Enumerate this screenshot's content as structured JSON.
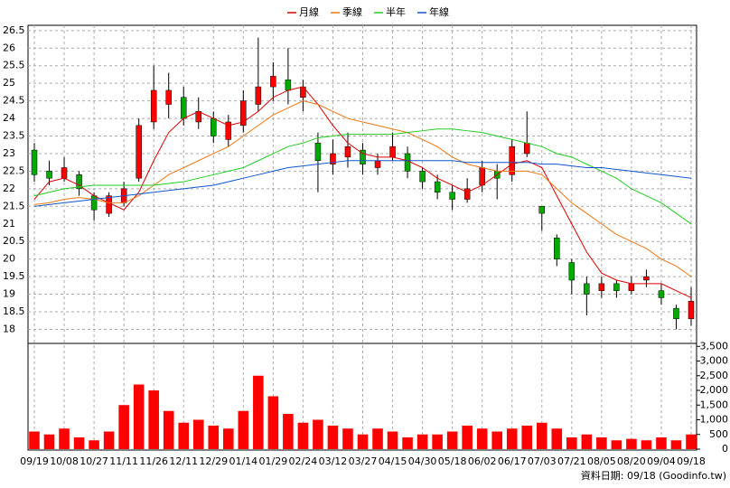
{
  "chart_data": {
    "type": "candlestick",
    "categories": [
      "09/19",
      null,
      "10/08",
      null,
      "10/27",
      null,
      "11/11",
      null,
      "11/26",
      null,
      "12/11",
      null,
      "12/29",
      null,
      "01/14",
      null,
      "01/29",
      null,
      "02/24",
      null,
      "03/12",
      null,
      "03/27",
      null,
      "04/15",
      null,
      "04/30",
      null,
      "05/18",
      null,
      "06/02",
      null,
      "06/17",
      null,
      "07/03",
      null,
      "07/21",
      null,
      "08/05",
      null,
      "08/20",
      null,
      "09/04",
      null,
      "09/18"
    ],
    "ohlc": [
      [
        23.1,
        23.3,
        22.2,
        22.4
      ],
      [
        22.5,
        22.8,
        22.1,
        22.3
      ],
      [
        22.3,
        22.9,
        22.2,
        22.6
      ],
      [
        22.4,
        22.5,
        21.8,
        22.0
      ],
      [
        21.8,
        21.9,
        21.1,
        21.4
      ],
      [
        21.3,
        21.9,
        21.2,
        21.8
      ],
      [
        21.6,
        22.2,
        21.5,
        22.0
      ],
      [
        22.3,
        24.0,
        22.2,
        23.8
      ],
      [
        23.9,
        25.5,
        23.7,
        24.8
      ],
      [
        24.4,
        25.3,
        24.0,
        24.8
      ],
      [
        24.6,
        24.9,
        23.8,
        24.0
      ],
      [
        23.9,
        24.6,
        23.7,
        24.2
      ],
      [
        24.0,
        24.2,
        23.3,
        23.5
      ],
      [
        23.4,
        24.1,
        23.2,
        23.9
      ],
      [
        23.8,
        24.8,
        23.6,
        24.5
      ],
      [
        24.4,
        26.3,
        24.2,
        24.9
      ],
      [
        24.9,
        25.6,
        24.5,
        25.2
      ],
      [
        25.1,
        26.0,
        24.4,
        24.8
      ],
      [
        24.6,
        25.1,
        24.2,
        24.9
      ],
      [
        23.3,
        23.6,
        21.9,
        22.8
      ],
      [
        22.7,
        23.4,
        22.4,
        23.0
      ],
      [
        22.9,
        23.6,
        22.6,
        23.2
      ],
      [
        23.1,
        23.3,
        22.4,
        22.7
      ],
      [
        22.6,
        23.0,
        22.4,
        22.8
      ],
      [
        22.9,
        23.6,
        22.8,
        23.2
      ],
      [
        23.0,
        23.2,
        22.3,
        22.5
      ],
      [
        22.5,
        22.6,
        22.0,
        22.2
      ],
      [
        22.2,
        22.4,
        21.7,
        21.9
      ],
      [
        21.9,
        22.1,
        21.4,
        21.7
      ],
      [
        21.7,
        22.3,
        21.6,
        22.0
      ],
      [
        22.1,
        22.8,
        21.9,
        22.6
      ],
      [
        22.5,
        22.7,
        21.7,
        22.3
      ],
      [
        22.4,
        23.4,
        22.2,
        23.2
      ],
      [
        23.0,
        24.2,
        22.9,
        23.3
      ],
      [
        21.5,
        21.5,
        20.8,
        21.3
      ],
      [
        20.6,
        20.7,
        19.8,
        20.0
      ],
      [
        19.9,
        20.0,
        19.0,
        19.4
      ],
      [
        19.3,
        19.5,
        18.4,
        19.0
      ],
      [
        19.1,
        19.5,
        18.9,
        19.3
      ],
      [
        19.3,
        19.4,
        18.9,
        19.1
      ],
      [
        19.1,
        19.5,
        19.0,
        19.3
      ],
      [
        19.4,
        19.7,
        19.2,
        19.5
      ],
      [
        19.1,
        19.3,
        18.7,
        18.9
      ],
      [
        18.6,
        18.7,
        18.0,
        18.3
      ],
      [
        18.3,
        19.2,
        18.1,
        18.8
      ]
    ],
    "up_color": "#ff0000",
    "down_color": "#00aa00",
    "series": [
      {
        "name": "月線",
        "color": "#dd0000",
        "values": [
          21.7,
          22.2,
          22.3,
          22.1,
          21.8,
          21.6,
          21.4,
          21.9,
          22.8,
          23.6,
          24.0,
          24.2,
          24.0,
          23.8,
          23.9,
          24.2,
          24.6,
          24.8,
          24.9,
          24.4,
          23.8,
          23.3,
          23.0,
          22.9,
          22.9,
          22.8,
          22.6,
          22.3,
          22.1,
          21.9,
          22.1,
          22.4,
          22.7,
          22.8,
          22.6,
          21.8,
          21.0,
          20.2,
          19.6,
          19.4,
          19.3,
          19.3,
          19.3,
          19.1,
          18.9
        ]
      },
      {
        "name": "季線",
        "color": "#ee7711",
        "values": [
          21.55,
          21.6,
          21.7,
          21.75,
          21.7,
          21.6,
          21.6,
          21.8,
          22.1,
          22.4,
          22.6,
          22.8,
          23.0,
          23.2,
          23.5,
          23.8,
          24.1,
          24.3,
          24.5,
          24.4,
          24.2,
          24.0,
          23.9,
          23.8,
          23.7,
          23.6,
          23.4,
          23.2,
          22.9,
          22.7,
          22.6,
          22.5,
          22.5,
          22.5,
          22.4,
          22.0,
          21.6,
          21.3,
          21.0,
          20.7,
          20.5,
          20.3,
          20.0,
          19.8,
          19.5
        ]
      },
      {
        "name": "半年",
        "color": "#22cc22",
        "values": [
          21.8,
          21.9,
          22.0,
          22.05,
          22.1,
          22.1,
          22.1,
          22.1,
          22.1,
          22.15,
          22.2,
          22.3,
          22.4,
          22.5,
          22.6,
          22.8,
          23.0,
          23.2,
          23.3,
          23.45,
          23.5,
          23.55,
          23.55,
          23.55,
          23.55,
          23.6,
          23.65,
          23.7,
          23.7,
          23.65,
          23.6,
          23.5,
          23.4,
          23.3,
          23.2,
          23.0,
          22.9,
          22.7,
          22.5,
          22.3,
          22.0,
          21.8,
          21.6,
          21.3,
          21.0
        ]
      },
      {
        "name": "年線",
        "color": "#1155cc",
        "values": [
          21.5,
          21.55,
          21.6,
          21.65,
          21.7,
          21.75,
          21.8,
          21.85,
          21.9,
          21.95,
          22.0,
          22.05,
          22.1,
          22.2,
          22.3,
          22.4,
          22.5,
          22.6,
          22.65,
          22.7,
          22.75,
          22.8,
          22.8,
          22.8,
          22.8,
          22.8,
          22.8,
          22.8,
          22.8,
          22.75,
          22.75,
          22.75,
          22.75,
          22.75,
          22.7,
          22.7,
          22.65,
          22.6,
          22.6,
          22.55,
          22.5,
          22.45,
          22.4,
          22.35,
          22.3
        ]
      }
    ],
    "ylim": [
      17.6,
      26.65
    ],
    "yticks": [
      18,
      18.5,
      19,
      19.5,
      20,
      20.5,
      21,
      21.5,
      22,
      22.5,
      23,
      23.5,
      24,
      24.5,
      25,
      25.5,
      26,
      26.5
    ],
    "volume": {
      "color": "#ff0000",
      "values": [
        600,
        500,
        700,
        400,
        300,
        600,
        1500,
        2200,
        2000,
        1300,
        900,
        1000,
        800,
        700,
        1300,
        2500,
        1800,
        1200,
        900,
        1000,
        800,
        700,
        500,
        700,
        600,
        400,
        500,
        500,
        600,
        800,
        700,
        600,
        700,
        800,
        900,
        700,
        400,
        500,
        400,
        300,
        350,
        300,
        400,
        300,
        500
      ],
      "ylim": [
        0,
        3600
      ],
      "yticks": [
        0,
        500,
        {
          "value": 1000,
          "label": "1,000"
        },
        {
          "value": 1500,
          "label": "1,500"
        },
        {
          "value": 2000,
          "label": "2,000"
        },
        {
          "value": 2500,
          "label": "2,500"
        },
        {
          "value": 3000,
          "label": "3,000"
        },
        {
          "value": 3500,
          "label": "3,500"
        }
      ]
    },
    "grid": true,
    "legend": "top",
    "footnote": "資料日期: 09/18 (Goodinfo.tw)"
  }
}
